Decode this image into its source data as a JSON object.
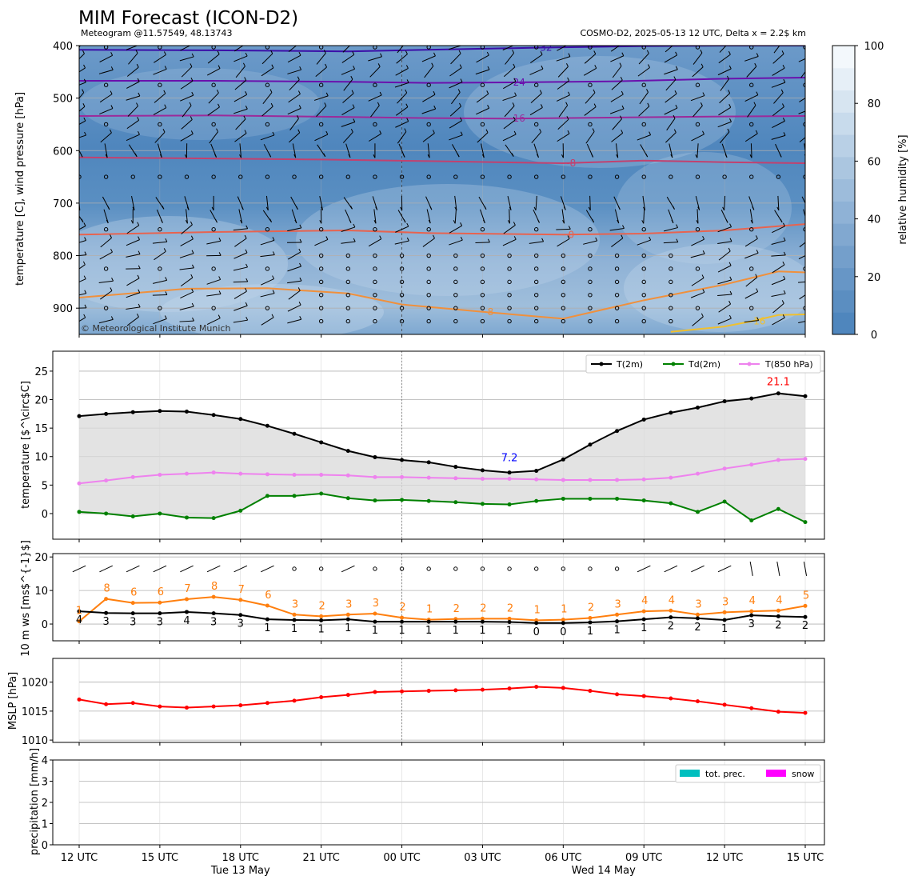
{
  "header": {
    "title": "MIM Forecast (ICON-D2)",
    "subtitle_left": "Meteogram @11.57549, 48.13743",
    "subtitle_right": "COSMO-D2, 2025-05-13 12 UTC, Delta x = 2.2$ km",
    "copyright": "© Meteorological Institute Munich"
  },
  "colors": {
    "t2m": "#000000",
    "td2m": "#008000",
    "t850": "#ee82ee",
    "wind_speed": "#000000",
    "wind_gust": "#ff7f0e",
    "mslp": "#ff0000",
    "precip": "#00bfbf",
    "snow": "#ff00ff",
    "max_label": "#ff0000",
    "min_label": "#0000ff"
  },
  "chart_data": [
    {
      "id": "upper-air",
      "type": "heatmap",
      "ylabel": "temperature [C], wind pressure [hPa]",
      "y_ticks": [
        400,
        500,
        600,
        700,
        800,
        900
      ],
      "ylim": [
        950,
        400
      ],
      "colorbar": {
        "label": "relative humidity [%]",
        "ticks": [
          0,
          20,
          40,
          60,
          80,
          100
        ],
        "range": [
          0,
          100
        ]
      },
      "isotherms": [
        {
          "label": "-32",
          "color": "#3b0fa8",
          "x": [
            0,
            5,
            10,
            12,
            17,
            21,
            24,
            27
          ],
          "p": [
            408,
            409,
            411,
            409,
            404,
            401,
            400,
            400
          ]
        },
        {
          "label": "-24",
          "color": "#6a11ad",
          "x": [
            0,
            5,
            10,
            13,
            16,
            20,
            24,
            27
          ],
          "p": [
            467,
            467,
            469,
            471,
            470,
            468,
            463,
            461
          ]
        },
        {
          "label": "-16",
          "color": "#9c2a9a",
          "x": [
            0,
            5,
            10,
            13,
            16,
            20,
            24,
            27
          ],
          "p": [
            534,
            533,
            536,
            538,
            539,
            537,
            535,
            534
          ]
        },
        {
          "label": "-8",
          "color": "#c2416f",
          "x": [
            0,
            5,
            9,
            13,
            18,
            21,
            24,
            27
          ],
          "p": [
            613,
            615,
            617,
            620,
            624,
            619,
            622,
            624
          ]
        },
        {
          "label": "0",
          "color": "#e8634f",
          "x": [
            0,
            5,
            10,
            13,
            18,
            21,
            24,
            27
          ],
          "p": [
            760,
            755,
            752,
            757,
            760,
            758,
            752,
            740
          ]
        },
        {
          "label": "8",
          "color": "#f0903c",
          "x": [
            0,
            4,
            7,
            10,
            12,
            15,
            18,
            21,
            24,
            26,
            27
          ],
          "p": [
            880,
            863,
            862,
            872,
            893,
            907,
            920,
            885,
            855,
            830,
            832
          ]
        },
        {
          "label": "16",
          "color": "#f0c02e",
          "x": [
            22,
            24,
            25,
            26,
            27
          ],
          "p": [
            945,
            935,
            925,
            913,
            912
          ]
        }
      ]
    },
    {
      "id": "temperature",
      "type": "line",
      "ylabel": "temperature [$^\\circ$C]",
      "ylim": [
        -4.5,
        28.5
      ],
      "y_ticks": [
        0,
        5,
        10,
        15,
        20,
        25
      ],
      "series": [
        {
          "name": "T(2m)",
          "values": [
            17.1,
            17.5,
            17.8,
            18.0,
            17.9,
            17.3,
            16.6,
            15.4,
            14.0,
            12.5,
            11.0,
            9.9,
            9.4,
            9.0,
            8.2,
            7.6,
            7.2,
            7.5,
            9.5,
            12.1,
            14.5,
            16.5,
            17.7,
            18.6,
            19.7,
            20.2,
            21.1,
            20.6
          ]
        },
        {
          "name": "Td(2m)",
          "values": [
            0.3,
            0.0,
            -0.5,
            0.0,
            -0.7,
            -0.8,
            0.5,
            3.1,
            3.1,
            3.5,
            2.7,
            2.3,
            2.4,
            2.2,
            2.0,
            1.7,
            1.6,
            2.2,
            2.6,
            2.6,
            2.6,
            2.3,
            1.8,
            0.3,
            2.1,
            -1.2,
            0.8,
            -1.5
          ]
        },
        {
          "name": "T(850 hPa)",
          "values": [
            5.3,
            5.8,
            6.4,
            6.8,
            7.0,
            7.2,
            7.0,
            6.9,
            6.8,
            6.8,
            6.7,
            6.4,
            6.4,
            6.3,
            6.2,
            6.1,
            6.1,
            6.0,
            5.9,
            5.9,
            5.9,
            6.0,
            6.3,
            7.0,
            7.9,
            8.6,
            9.4,
            9.6
          ]
        }
      ],
      "max_label": "21.1",
      "min_label": "7.2"
    },
    {
      "id": "wind",
      "type": "line",
      "ylabel": "10 m ws [ms$^{-1}$]",
      "ylim": [
        -5,
        21
      ],
      "y_ticks": [
        0,
        10,
        20
      ],
      "series": [
        {
          "name": "speed",
          "values": [
            3.8,
            3.3,
            3.2,
            3.2,
            3.6,
            3.2,
            2.7,
            1.4,
            1.2,
            1.1,
            1.4,
            0.7,
            0.7,
            0.7,
            0.7,
            0.7,
            0.6,
            0.3,
            0.3,
            0.5,
            0.8,
            1.4,
            2.0,
            1.7,
            1.2,
            2.6,
            2.3,
            2.1
          ],
          "labels": [
            "4",
            "3",
            "3",
            "3",
            "4",
            "3",
            "3",
            "1",
            "1",
            "1",
            "1",
            "1",
            "1",
            "1",
            "1",
            "1",
            "1",
            "0",
            "0",
            "1",
            "1",
            "1",
            "2",
            "2",
            "1",
            "3",
            "2",
            "2"
          ]
        },
        {
          "name": "gust",
          "values": [
            0.8,
            7.5,
            6.3,
            6.4,
            7.4,
            8.1,
            7.2,
            5.5,
            2.8,
            2.3,
            2.8,
            3.1,
            1.9,
            1.3,
            1.5,
            1.6,
            1.6,
            1.1,
            1.3,
            1.8,
            2.8,
            3.8,
            4.0,
            2.8,
            3.5,
            3.8,
            4.0,
            5.4
          ],
          "labels": [
            "1",
            "8",
            "6",
            "6",
            "7",
            "8",
            "7",
            "6",
            "3",
            "2",
            "3",
            "3",
            "2",
            "1",
            "2",
            "2",
            "2",
            "1",
            "1",
            "2",
            "3",
            "4",
            "4",
            "3",
            "3",
            "4",
            "4",
            "5"
          ]
        }
      ]
    },
    {
      "id": "mslp",
      "type": "line",
      "ylabel": "MSLP [hPa]",
      "ylim": [
        1009.6,
        1024.1
      ],
      "y_ticks": [
        1010,
        1015,
        1020
      ],
      "series": [
        {
          "name": "MSLP",
          "values": [
            1017.0,
            1016.2,
            1016.4,
            1015.8,
            1015.6,
            1015.8,
            1016.0,
            1016.4,
            1016.8,
            1017.4,
            1017.8,
            1018.3,
            1018.4,
            1018.5,
            1018.6,
            1018.7,
            1018.9,
            1019.2,
            1019.0,
            1018.5,
            1017.9,
            1017.6,
            1017.2,
            1016.7,
            1016.1,
            1015.5,
            1014.9,
            1014.7
          ]
        }
      ]
    },
    {
      "id": "precipitation",
      "type": "bar",
      "ylabel": "precipitation [mm/h]",
      "ylim": [
        0,
        4
      ],
      "y_ticks": [
        0,
        1,
        2,
        3,
        4
      ],
      "series": [
        {
          "name": "tot. prec.",
          "values": [
            0,
            0,
            0,
            0,
            0,
            0,
            0,
            0,
            0,
            0,
            0,
            0,
            0,
            0,
            0,
            0,
            0,
            0,
            0,
            0,
            0,
            0,
            0,
            0,
            0,
            0,
            0,
            0
          ]
        },
        {
          "name": "snow",
          "values": [
            0,
            0,
            0,
            0,
            0,
            0,
            0,
            0,
            0,
            0,
            0,
            0,
            0,
            0,
            0,
            0,
            0,
            0,
            0,
            0,
            0,
            0,
            0,
            0,
            0,
            0,
            0,
            0
          ]
        }
      ],
      "x_tick_labels": [
        "12 UTC",
        "15 UTC",
        "18 UTC",
        "21 UTC",
        "00 UTC",
        "03 UTC",
        "06 UTC",
        "09 UTC",
        "12 UTC",
        "15 UTC"
      ],
      "x_tick_hours": [
        0,
        3,
        6,
        9,
        12,
        15,
        18,
        21,
        24,
        27
      ],
      "day_labels": [
        {
          "label": "Tue 13 May",
          "hour": 6
        },
        {
          "label": "Wed 14 May",
          "hour": 19.5
        }
      ],
      "xlim": [
        -0.5,
        27.75
      ]
    }
  ]
}
